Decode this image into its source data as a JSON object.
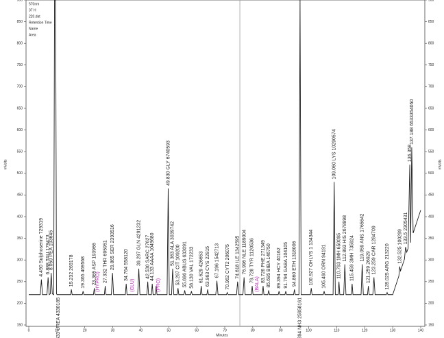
{
  "chart_data": {
    "type": "line",
    "x_label": "Minutes",
    "y_label": "mVolts",
    "legend_lines": [
      "570nm",
      "37 H",
      "220.dat",
      "Retention Time",
      "Name",
      "Area"
    ],
    "xlim": [
      0,
      140
    ],
    "xticks": [
      0,
      10,
      20,
      30,
      40,
      50,
      60,
      70,
      80,
      90,
      100,
      110,
      120,
      130,
      140
    ],
    "ylim": [
      150,
      900
    ],
    "yticks": [
      150,
      200,
      250,
      300,
      350,
      400,
      450,
      500,
      550,
      600,
      650,
      700,
      750,
      800,
      850,
      900
    ],
    "right_axis": true,
    "marker_x": 75.4,
    "series": [
      {
        "color": "#1a1a1a",
        "x": [
          0,
          4.1,
          4.5,
          4.9,
          6.5,
          6.9,
          7.3,
          7.7,
          8.0,
          8.4,
          8.9,
          9.2,
          9.6,
          9.9,
          10.1,
          10.5,
          15.0,
          15.2,
          15.5,
          19.1,
          19.4,
          19.7,
          23.1,
          23.4,
          23.7,
          27.0,
          27.3,
          27.6,
          29.5,
          29.9,
          30.3,
          34.5,
          34.8,
          35.1,
          38.9,
          39.3,
          39.7,
          42.2,
          42.5,
          42.8,
          43.8,
          44.1,
          44.4,
          45.2,
          45.5,
          45.8,
          49.4,
          49.8,
          50.2,
          51.0,
          51.4,
          51.8,
          53.0,
          53.3,
          53.6,
          55.4,
          55.7,
          56.0,
          57.8,
          58.1,
          58.4,
          61.3,
          61.6,
          61.9,
          63.6,
          63.9,
          64.2,
          66.8,
          67.2,
          67.6,
          70.6,
          70.9,
          71.2,
          74.2,
          74.6,
          75.0,
          76.5,
          76.9,
          77.3,
          79.5,
          79.8,
          80.1,
          83.4,
          83.7,
          84.0,
          85.4,
          85.7,
          86.0,
          89.1,
          89.4,
          89.7,
          91.5,
          91.8,
          92.1,
          94.6,
          94.9,
          95.2,
          96.5,
          96.9,
          97.3,
          100.6,
          100.9,
          101.2,
          105.2,
          105.5,
          105.8,
          108.7,
          109.1,
          109.5,
          110.5,
          110.8,
          111.1,
          112.5,
          112.9,
          113.3,
          115.2,
          115.5,
          115.8,
          118.7,
          119.1,
          119.5,
          121.0,
          121.3,
          121.6,
          122.9,
          123.3,
          123.7,
          127.7,
          128.0,
          128.3,
          130.0,
          132.2,
          132.5,
          132.8,
          134.2,
          134.6,
          135.0,
          135.5,
          136.1,
          136.4,
          136.8,
          137.3,
          140
        ],
        "values": [
          220,
          220,
          255,
          220,
          220,
          260,
          220,
          222,
          270,
          222,
          220,
          900,
          900,
          222,
          220,
          220,
          220,
          232,
          220,
          220,
          228,
          220,
          220,
          235,
          220,
          220,
          240,
          220,
          220,
          270,
          220,
          220,
          245,
          220,
          220,
          280,
          220,
          220,
          250,
          220,
          220,
          245,
          220,
          220,
          240,
          220,
          220,
          465,
          220,
          220,
          280,
          220,
          220,
          235,
          220,
          220,
          230,
          220,
          220,
          228,
          220,
          220,
          240,
          220,
          220,
          232,
          220,
          220,
          252,
          220,
          220,
          225,
          220,
          220,
          250,
          220,
          220,
          260,
          220,
          220,
          240,
          220,
          220,
          240,
          220,
          220,
          230,
          220,
          220,
          228,
          220,
          220,
          228,
          220,
          220,
          232,
          220,
          220,
          900,
          220,
          220,
          235,
          220,
          220,
          228,
          220,
          220,
          480,
          220,
          220,
          250,
          220,
          220,
          290,
          220,
          220,
          245,
          220,
          220,
          290,
          220,
          220,
          240,
          220,
          220,
          260,
          220,
          220,
          225,
          220,
          220,
          263,
          285,
          275,
          302,
          330,
          318,
          327,
          520,
          340,
          560,
          362,
          415
        ]
      }
    ],
    "annotations": [
      {
        "x": 4.5,
        "text": "4.490 Sulphoserine 729319"
      },
      {
        "x": 6.9,
        "text": "6.888 TAU 179473"
      },
      {
        "x": 8.0,
        "text": "8.059 PEA 193645"
      },
      {
        "x": 10.533,
        "text": "10.533 UREA 4330185",
        "position": "below"
      },
      {
        "x": 15.232,
        "text": "15.232 269178"
      },
      {
        "x": 19.365,
        "text": "19.365 469568"
      },
      {
        "x": 23.365,
        "text": "23.365 ASP 193966"
      },
      {
        "x": 24.6,
        "text": "(HYPRO)",
        "color": "#b030b0"
      },
      {
        "x": 27.332,
        "text": "27.332 THR 695951"
      },
      {
        "x": 29.865,
        "text": "29.865 SER 2393516"
      },
      {
        "x": 34.764,
        "text": "34.764 558120"
      },
      {
        "x": 37.0,
        "text": "(GLU)",
        "color": "#b030b0"
      },
      {
        "x": 39.297,
        "text": "39.297 GLN 4291232"
      },
      {
        "x": 42.53,
        "text": "42.530 SARC 27627"
      },
      {
        "x": 44.133,
        "text": "44.133 AAAA 1049680"
      },
      {
        "x": 46.3,
        "text": "(PRO)",
        "color": "#b030b0"
      },
      {
        "x": 49.83,
        "text": "49.830 GLY 6740593"
      },
      {
        "x": 51.363,
        "text": "51.363 ALA 3039742"
      },
      {
        "x": 53.297,
        "text": "53.297 CIT 109200"
      },
      {
        "x": 55.696,
        "text": "55.696 ABUS 633091"
      },
      {
        "x": 58.13,
        "text": "58.130 VAL 172233"
      },
      {
        "x": 61.629,
        "text": "61.629 426653"
      },
      {
        "x": 63.963,
        "text": "63.963 CYS 22915"
      },
      {
        "x": 67.196,
        "text": "67.196 1542713"
      },
      {
        "x": 70.962,
        "text": "70.962 CYT2 206075"
      },
      {
        "x": 74.618,
        "text": "74.618 ILE 1342595"
      },
      {
        "x": 76.996,
        "text": "76.996 NLE 1189004"
      },
      {
        "x": 79.728,
        "text": "79.728 TYR 1120536"
      },
      {
        "x": 81.5,
        "text": "(BALA)",
        "color": "#b030b0"
      },
      {
        "x": 83.726,
        "text": "83.726 PHE 271349"
      },
      {
        "x": 85.695,
        "text": "85.695 BIBA 146750"
      },
      {
        "x": 89.394,
        "text": "89.394 HCY 40162"
      },
      {
        "x": 91.794,
        "text": "91.794 GABA 104105"
      },
      {
        "x": 94.86,
        "text": "94.860 ETH 1318006"
      },
      {
        "x": 96.9,
        "text": "98.394 NH3 25958161",
        "position": "below"
      },
      {
        "x": 100.927,
        "text": "100.927 OHLYS 1 134344"
      },
      {
        "x": 105.46,
        "text": "105.460 ORN 94191"
      },
      {
        "x": 109.06,
        "text": "109.060 LYS 10290574"
      },
      {
        "x": 110.793,
        "text": "110.793 1MH 650095"
      },
      {
        "x": 112.893,
        "text": "112.893 HIS 2678998"
      },
      {
        "x": 115.459,
        "text": "115.459 3MH 735924"
      },
      {
        "x": 119.059,
        "text": "119.059 ANS 1765642"
      },
      {
        "x": 121.259,
        "text": "121.259 26929"
      },
      {
        "x": 123.259,
        "text": "123.259 CAR 1284709"
      },
      {
        "x": 128.025,
        "text": "128.025 ARG 213220"
      },
      {
        "x": 132.525,
        "text": "132.525 100299"
      },
      {
        "x": 134.6,
        "text": "133.5 2305431"
      },
      {
        "x": 136.1,
        "text": "136.358"
      },
      {
        "x": 136.8,
        "text": "137.188 6533354050"
      }
    ]
  }
}
